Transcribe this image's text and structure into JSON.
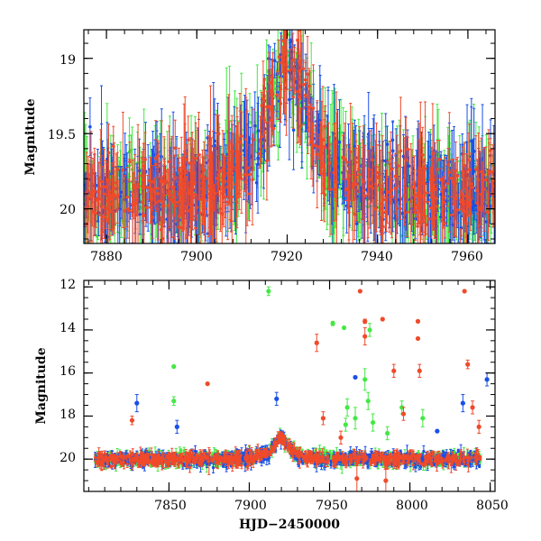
{
  "colors": {
    "blue": "#1a4fe8",
    "green": "#44e844",
    "red": "#f04a2a"
  },
  "chart_data": [
    {
      "id": "top",
      "type": "scatter",
      "title": "",
      "xlabel": "",
      "ylabel": "Magnitude",
      "xlim": [
        7875,
        7966
      ],
      "ylim": [
        20.23,
        18.81
      ],
      "y_inverted": true,
      "xticks": [
        7880,
        7900,
        7920,
        7940,
        7960
      ],
      "yticks": [
        19,
        19.5,
        20
      ],
      "ytick_labels": [
        "19",
        "19.5",
        "20"
      ],
      "series": [
        {
          "name": "blue",
          "color": "blue"
        },
        {
          "name": "green",
          "color": "green"
        },
        {
          "name": "red",
          "color": "red"
        }
      ],
      "light_curve": {
        "baseline": 19.92,
        "peak_time": 7920,
        "peak_mag": 19.02,
        "rise_start": 7905,
        "fall_end": 7934,
        "x_range": [
          7875,
          7966
        ]
      }
    },
    {
      "id": "bottom",
      "type": "scatter",
      "title": "",
      "xlabel": "HJD−2450000",
      "ylabel": "Magnitude",
      "xlim": [
        7797,
        8053
      ],
      "ylim": [
        21.5,
        11.7
      ],
      "y_inverted": true,
      "xticks": [
        7850,
        7900,
        7950,
        8000,
        8050
      ],
      "yticks": [
        12,
        14,
        16,
        18,
        20
      ],
      "series": [
        {
          "name": "blue",
          "color": "blue"
        },
        {
          "name": "green",
          "color": "green"
        },
        {
          "name": "red",
          "color": "red"
        }
      ],
      "light_curve": {
        "baseline": 20.0,
        "peak_time": 7920,
        "peak_mag": 19.02,
        "x_range": [
          7804,
          8044
        ]
      },
      "outliers": [
        {
          "x": 7912,
          "y": 12.2,
          "color": "green",
          "err": 0.2
        },
        {
          "x": 7969,
          "y": 12.2,
          "color": "red",
          "err": 0.0
        },
        {
          "x": 8034,
          "y": 12.2,
          "color": "red",
          "err": 0.0
        },
        {
          "x": 7952,
          "y": 13.7,
          "color": "green",
          "err": 0.1
        },
        {
          "x": 7959,
          "y": 13.9,
          "color": "green",
          "err": 0.0
        },
        {
          "x": 7972,
          "y": 13.6,
          "color": "red",
          "err": 0.1
        },
        {
          "x": 7983,
          "y": 13.5,
          "color": "red",
          "err": 0.0
        },
        {
          "x": 8005,
          "y": 13.6,
          "color": "red",
          "err": 0.0
        },
        {
          "x": 7975,
          "y": 14.0,
          "color": "green",
          "err": 0.3
        },
        {
          "x": 7972,
          "y": 14.3,
          "color": "red",
          "err": 0.4
        },
        {
          "x": 8005,
          "y": 14.4,
          "color": "red",
          "err": 0.0
        },
        {
          "x": 7942,
          "y": 14.6,
          "color": "red",
          "err": 0.4
        },
        {
          "x": 7853,
          "y": 15.7,
          "color": "green",
          "err": 0.0
        },
        {
          "x": 8036,
          "y": 15.6,
          "color": "red",
          "err": 0.2
        },
        {
          "x": 7990,
          "y": 15.9,
          "color": "red",
          "err": 0.3
        },
        {
          "x": 8006,
          "y": 15.9,
          "color": "red",
          "err": 0.3
        },
        {
          "x": 7966,
          "y": 16.2,
          "color": "blue",
          "err": 0.0
        },
        {
          "x": 7972,
          "y": 16.3,
          "color": "green",
          "err": 0.5
        },
        {
          "x": 8048,
          "y": 16.3,
          "color": "blue",
          "err": 0.3
        },
        {
          "x": 7874,
          "y": 16.5,
          "color": "red",
          "err": 0.0
        },
        {
          "x": 7917,
          "y": 17.2,
          "color": "blue",
          "err": 0.3
        },
        {
          "x": 7830,
          "y": 17.4,
          "color": "blue",
          "err": 0.4
        },
        {
          "x": 7853,
          "y": 17.3,
          "color": "green",
          "err": 0.2
        },
        {
          "x": 8033,
          "y": 17.4,
          "color": "blue",
          "err": 0.4
        },
        {
          "x": 7974,
          "y": 17.3,
          "color": "green",
          "err": 0.4
        },
        {
          "x": 7995,
          "y": 17.6,
          "color": "green",
          "err": 0.3
        },
        {
          "x": 7996,
          "y": 17.9,
          "color": "red",
          "err": 0.3
        },
        {
          "x": 8039,
          "y": 17.6,
          "color": "red",
          "err": 0.3
        },
        {
          "x": 7827,
          "y": 18.2,
          "color": "red",
          "err": 0.2
        },
        {
          "x": 7855,
          "y": 18.5,
          "color": "blue",
          "err": 0.3
        },
        {
          "x": 7961,
          "y": 17.6,
          "color": "green",
          "err": 0.4
        },
        {
          "x": 7966,
          "y": 18.1,
          "color": "green",
          "err": 0.5
        },
        {
          "x": 7977,
          "y": 18.3,
          "color": "green",
          "err": 0.4
        },
        {
          "x": 8008,
          "y": 18.1,
          "color": "green",
          "err": 0.4
        },
        {
          "x": 8017,
          "y": 18.7,
          "color": "blue",
          "err": 0.0
        },
        {
          "x": 8043,
          "y": 18.5,
          "color": "red",
          "err": 0.3
        },
        {
          "x": 7986,
          "y": 18.8,
          "color": "green",
          "err": 0.3
        },
        {
          "x": 7946,
          "y": 18.1,
          "color": "red",
          "err": 0.3
        },
        {
          "x": 7960,
          "y": 18.4,
          "color": "green",
          "err": 0.3
        },
        {
          "x": 7957,
          "y": 19.0,
          "color": "red",
          "err": 0.3
        },
        {
          "x": 7967,
          "y": 20.9,
          "color": "red",
          "err": 0.6
        },
        {
          "x": 7985,
          "y": 21.0,
          "color": "red",
          "err": 0.6
        }
      ]
    }
  ]
}
